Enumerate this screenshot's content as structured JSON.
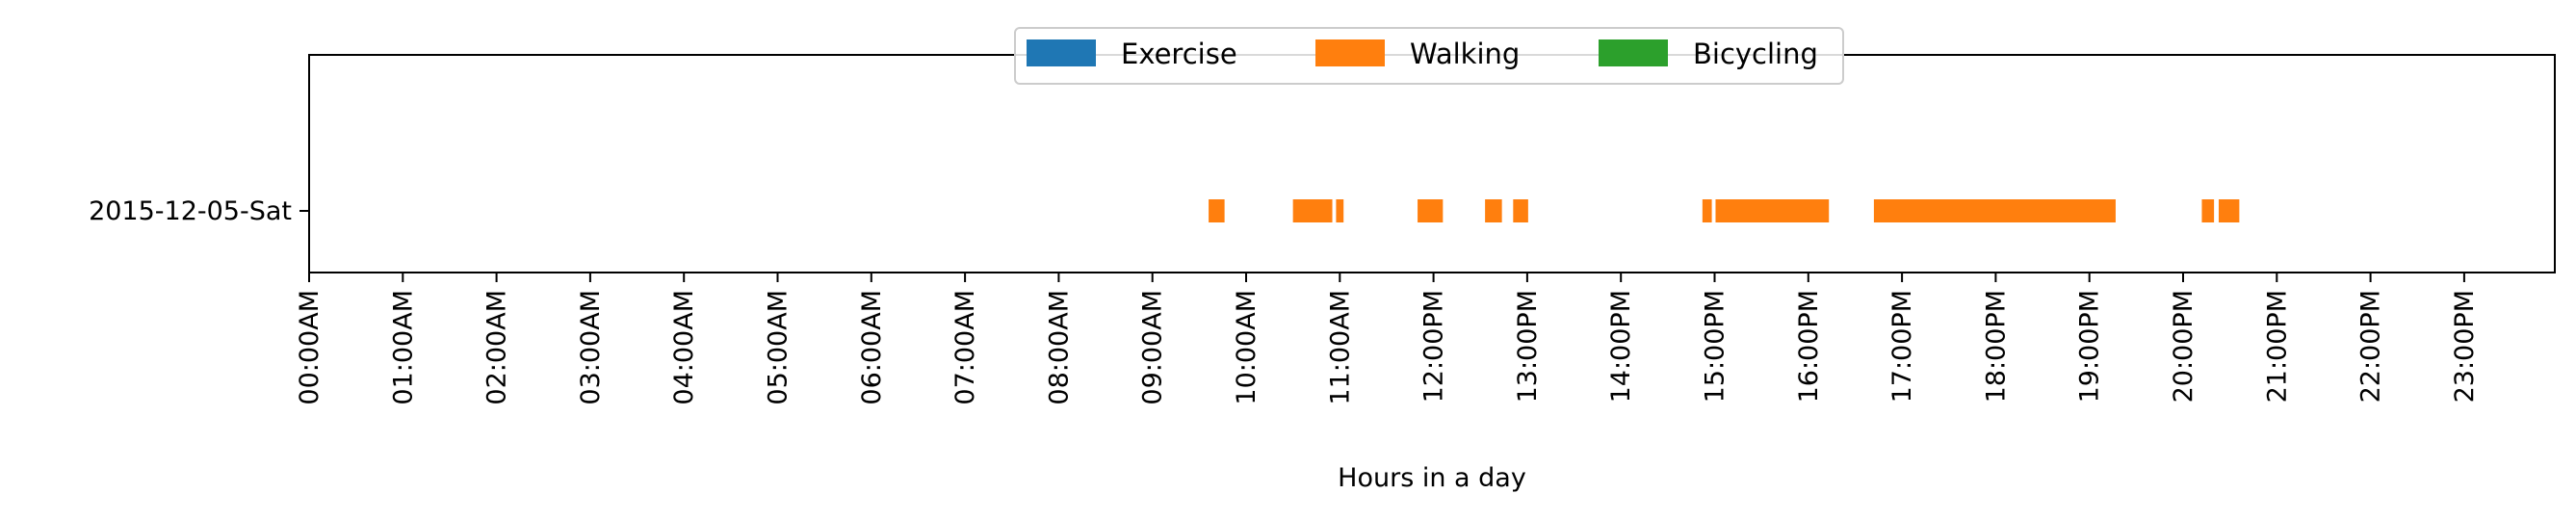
{
  "chart_data": {
    "type": "timeline",
    "xlabel": "Hours in a day",
    "ylabel": "",
    "xlim": [
      0,
      24
    ],
    "grid": false,
    "legend": {
      "placement": "top-center",
      "entries": [
        {
          "name": "Exercise",
          "color": "#1f77b4"
        },
        {
          "name": "Walking",
          "color": "#ff7f0e"
        },
        {
          "name": "Bicycling",
          "color": "#2ca02c"
        }
      ]
    },
    "rows": [
      "2015-12-05-Sat"
    ],
    "x_ticks": [
      {
        "value": 0,
        "label": "00:00AM"
      },
      {
        "value": 1,
        "label": "01:00AM"
      },
      {
        "value": 2,
        "label": "02:00AM"
      },
      {
        "value": 3,
        "label": "03:00AM"
      },
      {
        "value": 4,
        "label": "04:00AM"
      },
      {
        "value": 5,
        "label": "05:00AM"
      },
      {
        "value": 6,
        "label": "06:00AM"
      },
      {
        "value": 7,
        "label": "07:00AM"
      },
      {
        "value": 8,
        "label": "08:00AM"
      },
      {
        "value": 9,
        "label": "09:00AM"
      },
      {
        "value": 10,
        "label": "10:00AM"
      },
      {
        "value": 11,
        "label": "11:00AM"
      },
      {
        "value": 12,
        "label": "12:00PM"
      },
      {
        "value": 13,
        "label": "13:00PM"
      },
      {
        "value": 14,
        "label": "14:00PM"
      },
      {
        "value": 15,
        "label": "15:00PM"
      },
      {
        "value": 16,
        "label": "16:00PM"
      },
      {
        "value": 17,
        "label": "17:00PM"
      },
      {
        "value": 18,
        "label": "18:00PM"
      },
      {
        "value": 19,
        "label": "19:00PM"
      },
      {
        "value": 20,
        "label": "20:00PM"
      },
      {
        "value": 21,
        "label": "21:00PM"
      },
      {
        "value": 22,
        "label": "22:00PM"
      },
      {
        "value": 23,
        "label": "23:00PM"
      }
    ],
    "series": [
      {
        "name": "Exercise",
        "intervals": []
      },
      {
        "name": "Walking",
        "intervals": [
          {
            "row": "2015-12-05-Sat",
            "start": 9.6,
            "end": 9.77
          },
          {
            "row": "2015-12-05-Sat",
            "start": 10.5,
            "end": 10.92
          },
          {
            "row": "2015-12-05-Sat",
            "start": 10.96,
            "end": 11.04
          },
          {
            "row": "2015-12-05-Sat",
            "start": 11.83,
            "end": 12.1
          },
          {
            "row": "2015-12-05-Sat",
            "start": 12.55,
            "end": 12.73
          },
          {
            "row": "2015-12-05-Sat",
            "start": 12.85,
            "end": 13.01
          },
          {
            "row": "2015-12-05-Sat",
            "start": 14.87,
            "end": 14.97
          },
          {
            "row": "2015-12-05-Sat",
            "start": 15.01,
            "end": 16.22
          },
          {
            "row": "2015-12-05-Sat",
            "start": 16.7,
            "end": 19.28
          },
          {
            "row": "2015-12-05-Sat",
            "start": 20.2,
            "end": 20.33
          },
          {
            "row": "2015-12-05-Sat",
            "start": 20.38,
            "end": 20.6
          }
        ]
      },
      {
        "name": "Bicycling",
        "intervals": []
      }
    ]
  }
}
